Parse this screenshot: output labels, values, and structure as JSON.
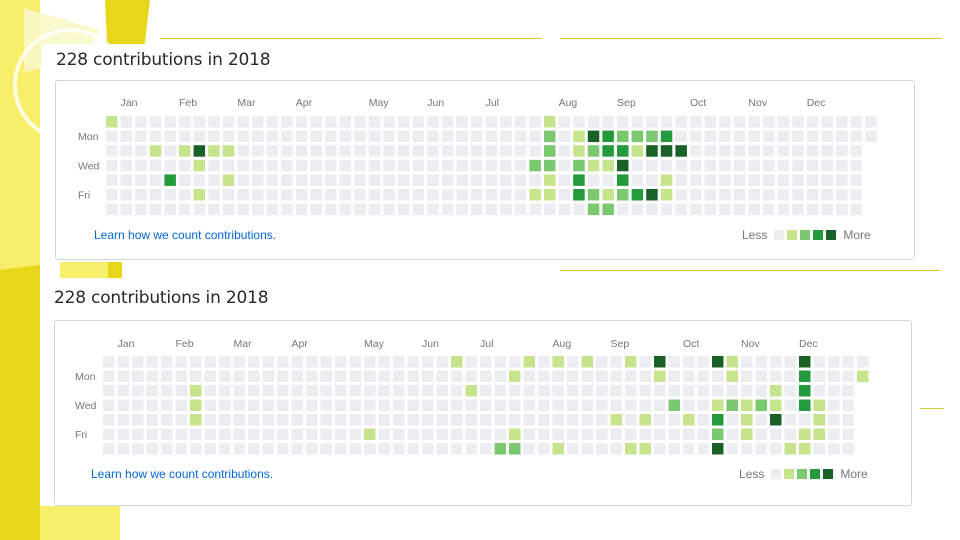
{
  "colors": {
    "accent_yellow": "#e8d61a",
    "light_yellow": "#f7ee6a",
    "level_0": "#ebedf0",
    "level_1": "#c6e48b",
    "level_2": "#7bc96f",
    "level_3": "#239a3b",
    "level_4": "#196127",
    "link": "#0366d6",
    "text": "#24292e",
    "muted": "#767676"
  },
  "graphs": [
    {
      "title": "228 contributions in 2018",
      "months": [
        {
          "label": "Jan",
          "week": 1
        },
        {
          "label": "Feb",
          "week": 5
        },
        {
          "label": "Mar",
          "week": 9
        },
        {
          "label": "Apr",
          "week": 13
        },
        {
          "label": "May",
          "week": 18
        },
        {
          "label": "Jun",
          "week": 22
        },
        {
          "label": "Jul",
          "week": 26
        },
        {
          "label": "Aug",
          "week": 31
        },
        {
          "label": "Sep",
          "week": 35
        },
        {
          "label": "Oct",
          "week": 40
        },
        {
          "label": "Nov",
          "week": 44
        },
        {
          "label": "Dec",
          "week": 48
        }
      ],
      "day_labels": [
        {
          "label": "Mon",
          "day": 1
        },
        {
          "label": "Wed",
          "day": 3
        },
        {
          "label": "Fri",
          "day": 5
        }
      ],
      "weeks": 53,
      "partial_weeks": [
        {
          "week": 52,
          "days": 2
        }
      ],
      "cells": [
        [
          1,
          0,
          0,
          0,
          0,
          0,
          0,
          0,
          0,
          0,
          0,
          0,
          0,
          0,
          0,
          0,
          0,
          0,
          0,
          0,
          0,
          0,
          0,
          0,
          0,
          0,
          0,
          0,
          0,
          0,
          1,
          0,
          0,
          0,
          0,
          0,
          0,
          0,
          0,
          0,
          0,
          0,
          0,
          0,
          0,
          0,
          0,
          0,
          0,
          0,
          0,
          0,
          0
        ],
        [
          0,
          0,
          0,
          0,
          0,
          0,
          0,
          0,
          0,
          0,
          0,
          0,
          0,
          0,
          0,
          0,
          0,
          0,
          0,
          0,
          0,
          0,
          0,
          0,
          0,
          0,
          0,
          0,
          0,
          0,
          2,
          0,
          1,
          4,
          3,
          2,
          2,
          2,
          3,
          0,
          0,
          0,
          0,
          0,
          0,
          0,
          0,
          0,
          0,
          0,
          0,
          0,
          0
        ],
        [
          0,
          0,
          0,
          1,
          0,
          1,
          4,
          1,
          1,
          0,
          0,
          0,
          0,
          0,
          0,
          0,
          0,
          0,
          0,
          0,
          0,
          0,
          0,
          0,
          0,
          0,
          0,
          0,
          0,
          0,
          2,
          0,
          1,
          2,
          3,
          3,
          1,
          4,
          4,
          4,
          0,
          0,
          0,
          0,
          0,
          0,
          0,
          0,
          0,
          0,
          0,
          0,
          0
        ],
        [
          0,
          0,
          0,
          0,
          0,
          0,
          1,
          0,
          0,
          0,
          0,
          0,
          0,
          0,
          0,
          0,
          0,
          0,
          0,
          0,
          0,
          0,
          0,
          0,
          0,
          0,
          0,
          0,
          0,
          2,
          2,
          0,
          2,
          1,
          1,
          4,
          0,
          0,
          0,
          0,
          0,
          0,
          0,
          0,
          0,
          0,
          0,
          0,
          0,
          0,
          0,
          0,
          0
        ],
        [
          0,
          0,
          0,
          0,
          3,
          0,
          0,
          0,
          1,
          0,
          0,
          0,
          0,
          0,
          0,
          0,
          0,
          0,
          0,
          0,
          0,
          0,
          0,
          0,
          0,
          0,
          0,
          0,
          0,
          0,
          1,
          0,
          3,
          0,
          0,
          3,
          0,
          0,
          1,
          0,
          0,
          0,
          0,
          0,
          0,
          0,
          0,
          0,
          0,
          0,
          0,
          0,
          0
        ],
        [
          0,
          0,
          0,
          0,
          0,
          0,
          1,
          0,
          0,
          0,
          0,
          0,
          0,
          0,
          0,
          0,
          0,
          0,
          0,
          0,
          0,
          0,
          0,
          0,
          0,
          0,
          0,
          0,
          0,
          1,
          1,
          0,
          3,
          2,
          1,
          2,
          3,
          4,
          1,
          0,
          0,
          0,
          0,
          0,
          0,
          0,
          0,
          0,
          0,
          0,
          0,
          0,
          0
        ],
        [
          0,
          0,
          0,
          0,
          0,
          0,
          0,
          0,
          0,
          0,
          0,
          0,
          0,
          0,
          0,
          0,
          0,
          0,
          0,
          0,
          0,
          0,
          0,
          0,
          0,
          0,
          0,
          0,
          0,
          0,
          0,
          0,
          0,
          2,
          2,
          0,
          0,
          0,
          0,
          0,
          0,
          0,
          0,
          0,
          0,
          0,
          0,
          0,
          0,
          0,
          0,
          0,
          0
        ]
      ],
      "learn_link": "Learn how we count contributions.",
      "legend_less": "Less",
      "legend_more": "More"
    },
    {
      "title": "228 contributions in 2018",
      "months": [
        {
          "label": "Jan",
          "week": 1
        },
        {
          "label": "Feb",
          "week": 5
        },
        {
          "label": "Mar",
          "week": 9
        },
        {
          "label": "Apr",
          "week": 13
        },
        {
          "label": "May",
          "week": 18
        },
        {
          "label": "Jun",
          "week": 22
        },
        {
          "label": "Jul",
          "week": 26
        },
        {
          "label": "Aug",
          "week": 31
        },
        {
          "label": "Sep",
          "week": 35
        },
        {
          "label": "Oct",
          "week": 40
        },
        {
          "label": "Nov",
          "week": 44
        },
        {
          "label": "Dec",
          "week": 48
        }
      ],
      "day_labels": [
        {
          "label": "Mon",
          "day": 1
        },
        {
          "label": "Wed",
          "day": 3
        },
        {
          "label": "Fri",
          "day": 5
        }
      ],
      "weeks": 53,
      "partial_weeks": [
        {
          "week": 52,
          "days": 2
        }
      ],
      "cells": [
        [
          0,
          0,
          0,
          0,
          0,
          0,
          0,
          0,
          0,
          0,
          0,
          0,
          0,
          0,
          0,
          0,
          0,
          0,
          0,
          0,
          0,
          0,
          0,
          0,
          1,
          0,
          0,
          0,
          0,
          1,
          0,
          1,
          0,
          1,
          0,
          0,
          1,
          0,
          4,
          0,
          0,
          0,
          4,
          1,
          0,
          0,
          0,
          0,
          4,
          0,
          0,
          0,
          0
        ],
        [
          0,
          0,
          0,
          0,
          0,
          0,
          0,
          0,
          0,
          0,
          0,
          0,
          0,
          0,
          0,
          0,
          0,
          0,
          0,
          0,
          0,
          0,
          0,
          0,
          0,
          0,
          0,
          0,
          1,
          0,
          0,
          0,
          0,
          0,
          0,
          0,
          0,
          0,
          1,
          0,
          0,
          0,
          0,
          1,
          0,
          0,
          0,
          0,
          3,
          0,
          0,
          0,
          1
        ],
        [
          0,
          0,
          0,
          0,
          0,
          0,
          1,
          0,
          0,
          0,
          0,
          0,
          0,
          0,
          0,
          0,
          0,
          0,
          0,
          0,
          0,
          0,
          0,
          0,
          0,
          1,
          0,
          0,
          0,
          0,
          0,
          0,
          0,
          0,
          0,
          0,
          0,
          0,
          0,
          0,
          0,
          0,
          0,
          0,
          0,
          0,
          1,
          0,
          3,
          0,
          0,
          0,
          0
        ],
        [
          0,
          0,
          0,
          0,
          0,
          0,
          1,
          0,
          0,
          0,
          0,
          0,
          0,
          0,
          0,
          0,
          0,
          0,
          0,
          0,
          0,
          0,
          0,
          0,
          0,
          0,
          0,
          0,
          0,
          0,
          0,
          0,
          0,
          0,
          0,
          0,
          0,
          0,
          0,
          2,
          0,
          0,
          1,
          2,
          1,
          2,
          1,
          0,
          3,
          1,
          0,
          0,
          0
        ],
        [
          0,
          0,
          0,
          0,
          0,
          0,
          1,
          0,
          0,
          0,
          0,
          0,
          0,
          0,
          0,
          0,
          0,
          0,
          0,
          0,
          0,
          0,
          0,
          0,
          0,
          0,
          0,
          0,
          0,
          0,
          0,
          0,
          0,
          0,
          0,
          1,
          0,
          1,
          0,
          0,
          1,
          0,
          3,
          0,
          1,
          0,
          4,
          0,
          0,
          1,
          0,
          0,
          0
        ],
        [
          0,
          0,
          0,
          0,
          0,
          0,
          0,
          0,
          0,
          0,
          0,
          0,
          0,
          0,
          0,
          0,
          0,
          0,
          1,
          0,
          0,
          0,
          0,
          0,
          0,
          0,
          0,
          0,
          1,
          0,
          0,
          0,
          0,
          0,
          0,
          0,
          0,
          0,
          0,
          0,
          0,
          0,
          2,
          0,
          1,
          0,
          0,
          0,
          1,
          1,
          0,
          0,
          0
        ],
        [
          0,
          0,
          0,
          0,
          0,
          0,
          0,
          0,
          0,
          0,
          0,
          0,
          0,
          0,
          0,
          0,
          0,
          0,
          0,
          0,
          0,
          0,
          0,
          0,
          0,
          0,
          0,
          2,
          2,
          0,
          0,
          1,
          0,
          0,
          0,
          0,
          1,
          1,
          0,
          0,
          0,
          0,
          4,
          0,
          0,
          0,
          0,
          1,
          1,
          0,
          0,
          0,
          0
        ]
      ],
      "learn_link": "Learn how we count contributions.",
      "legend_less": "Less",
      "legend_more": "More"
    }
  ]
}
